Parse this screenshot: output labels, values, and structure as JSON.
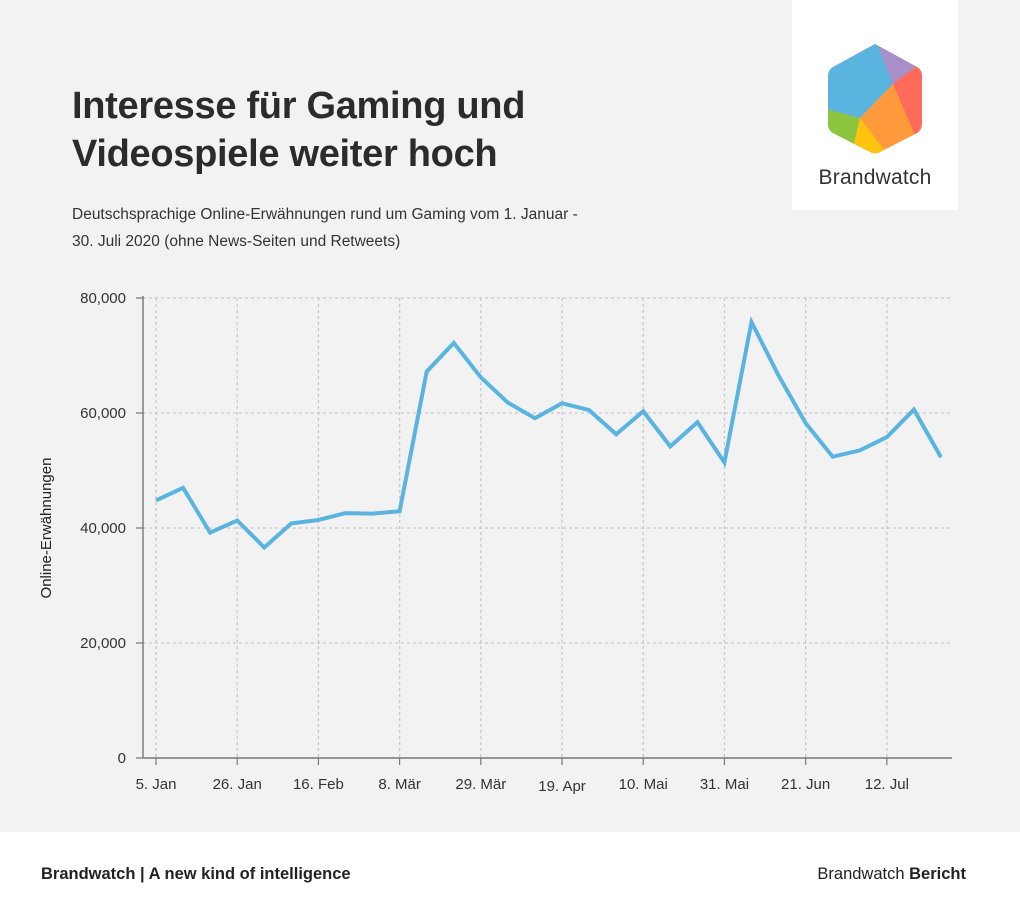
{
  "header": {
    "title": "Interesse für Gaming und Videospiele weiter hoch",
    "subtitle": "Deutschsprachige Online-Erwähnungen rund um Gaming vom 1. Januar - 30. Juli 2020 (ohne News-Seiten und Retweets)"
  },
  "logo": {
    "name": "Brandwatch",
    "icon": "brandwatch-hexagon-icon"
  },
  "footer": {
    "left": "Brandwatch | A new kind of intelligence",
    "right_prefix": "Brandwatch",
    "right_bold": "Bericht"
  },
  "colors": {
    "line": "#5ab4e0",
    "grid": "#c8c8c8",
    "axis": "#777777",
    "background": "#f2f2f2"
  },
  "chart_data": {
    "type": "line",
    "title": "Interesse für Gaming und Videospiele weiter hoch",
    "xlabel": "",
    "ylabel": "Online-Erwähnungen",
    "ylim": [
      0,
      80000
    ],
    "yticks": [
      0,
      20000,
      40000,
      60000,
      80000
    ],
    "ytick_labels": [
      "0",
      "20,000",
      "40,000",
      "60,000",
      "80,000"
    ],
    "xtick_labels": [
      "5. Jan",
      "26. Jan",
      "16. Feb",
      "8. Mär",
      "29. Mär",
      "19. Apr",
      "10. Mai",
      "31. Mai",
      "21. Jun",
      "12. Jul"
    ],
    "grid": true,
    "series": [
      {
        "values": [
          44800,
          47000,
          39200,
          41300,
          36600,
          40800,
          41400,
          42600,
          42500,
          42900,
          67200,
          72200,
          66200,
          61800,
          59100,
          61700,
          60500,
          56300,
          60300,
          54200,
          58400,
          51400,
          75800,
          66500,
          58200,
          52400,
          53500,
          55800,
          60600,
          52300
        ]
      }
    ]
  }
}
